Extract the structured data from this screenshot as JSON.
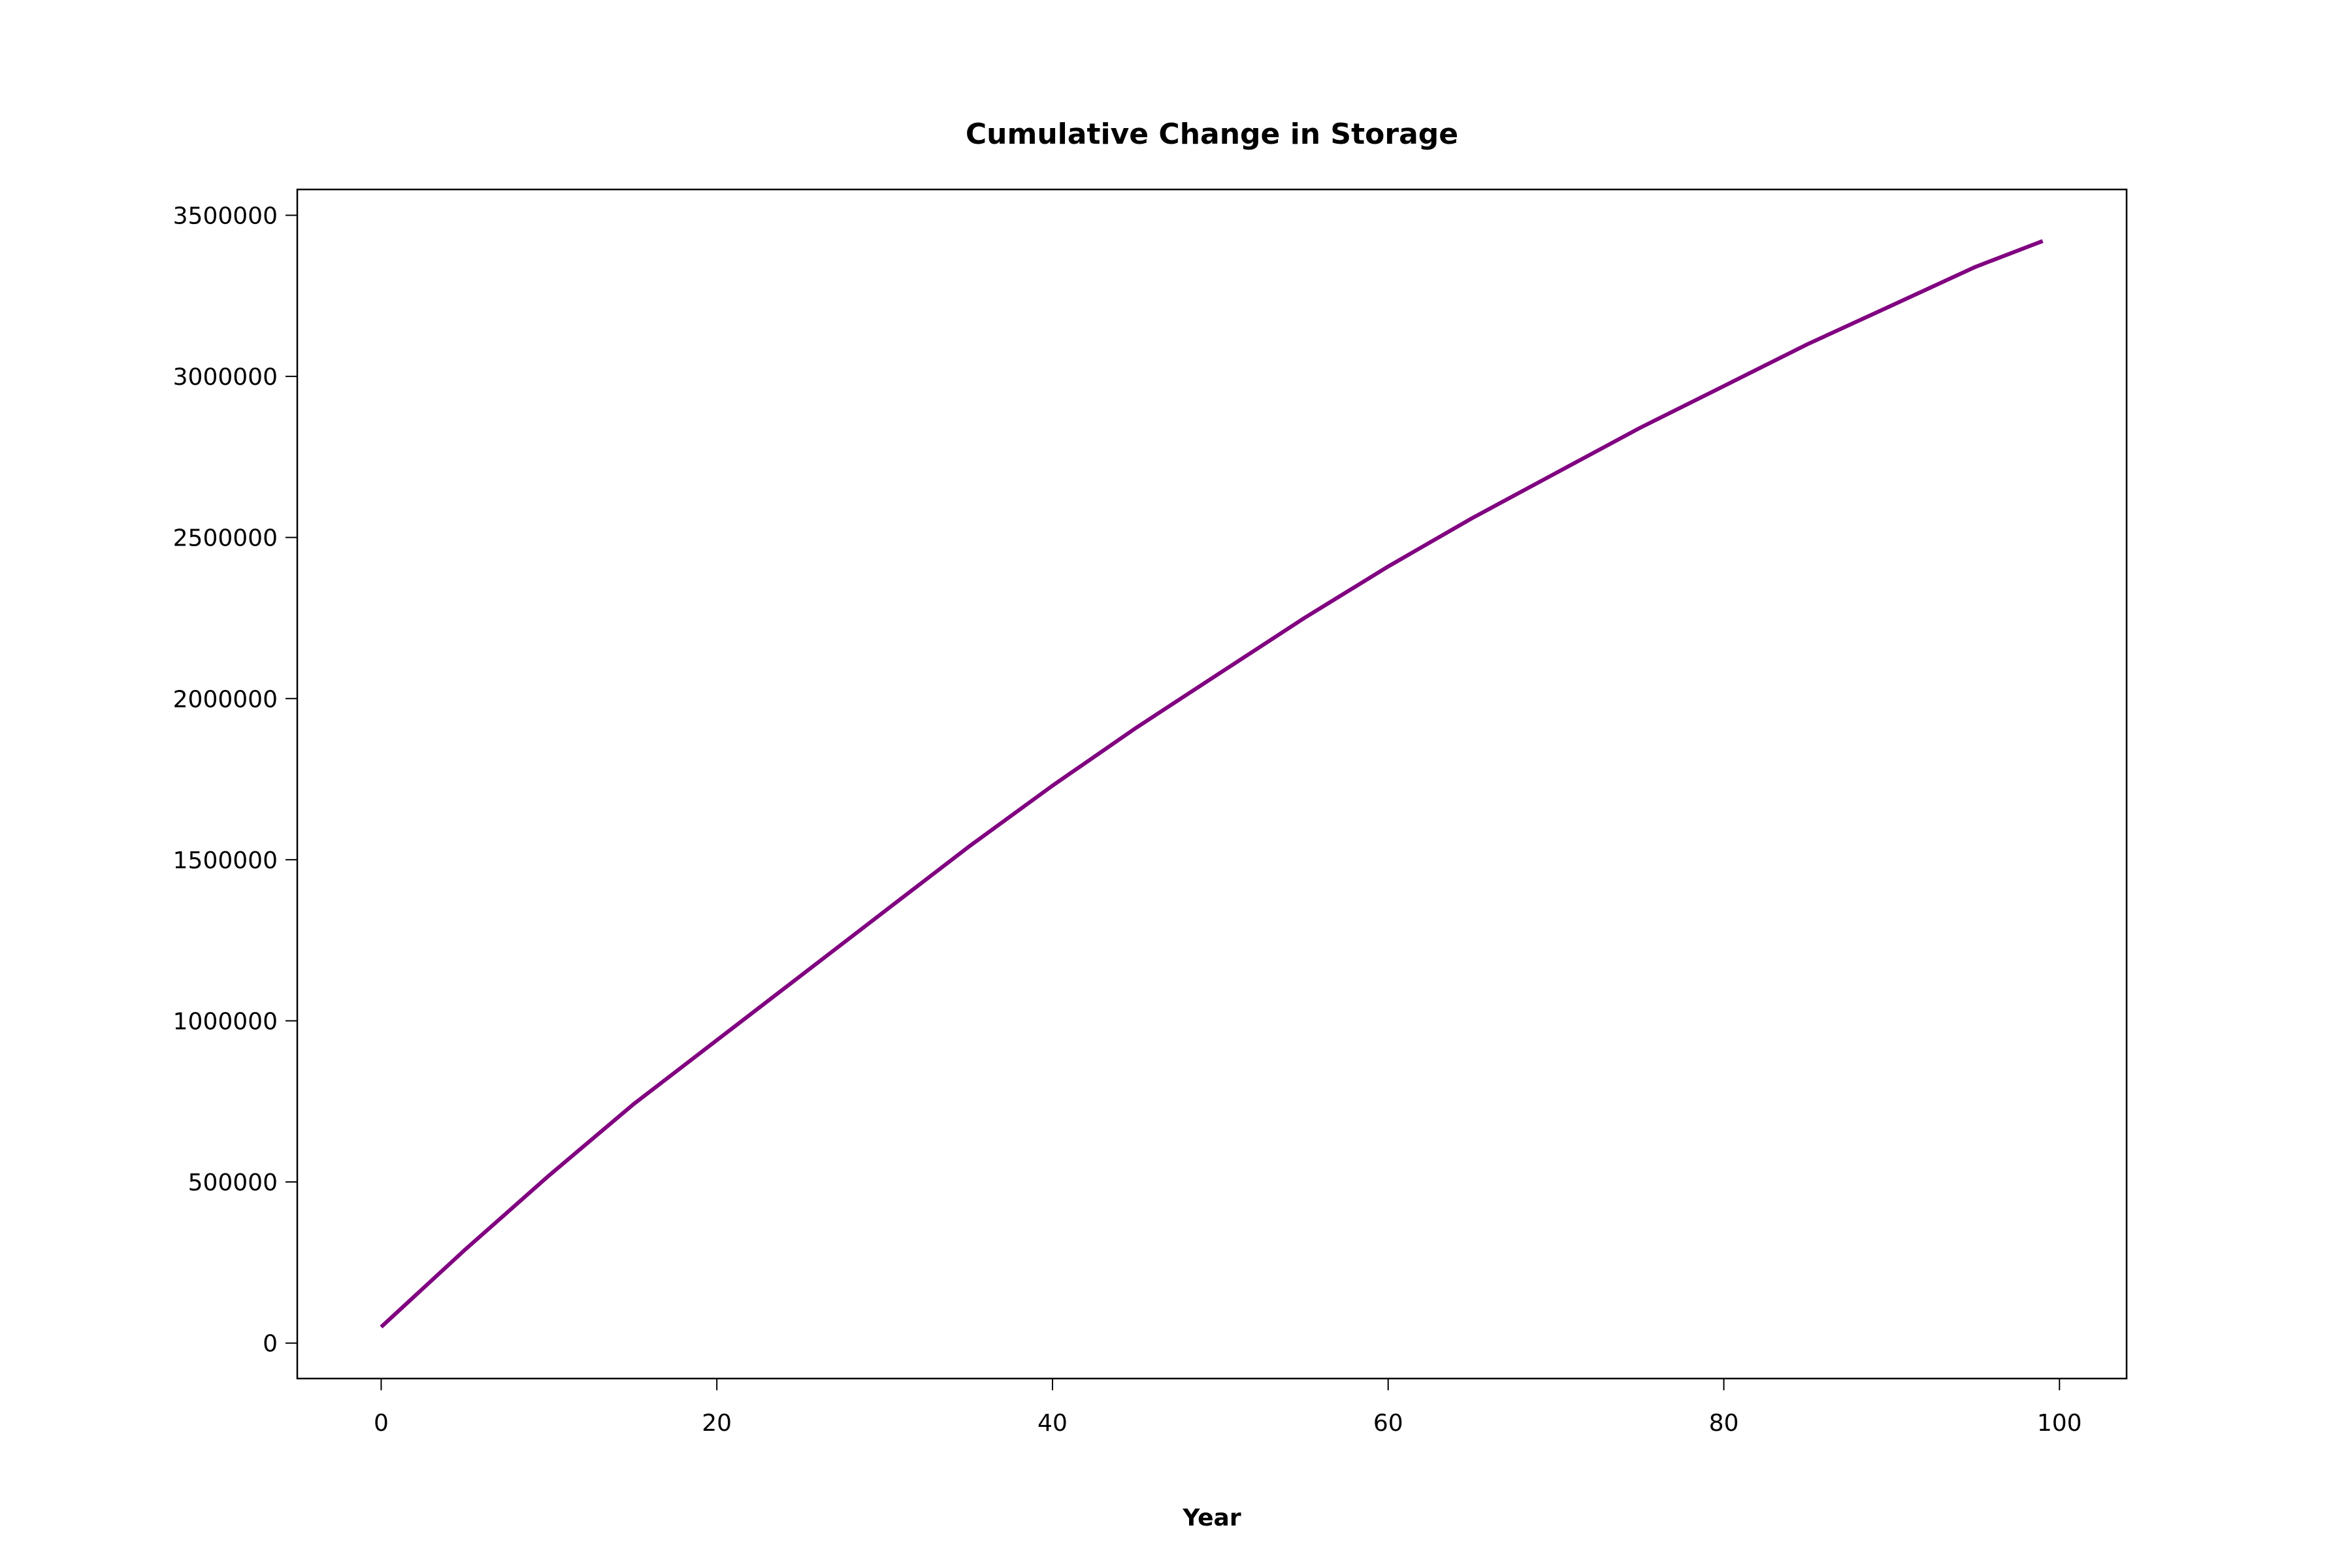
{
  "chart_data": {
    "type": "line",
    "title": "Cumulative Change in Storage",
    "xlabel": "Year",
    "ylabel": "",
    "xlim": [
      -5,
      104
    ],
    "ylim": [
      -110000,
      3580000
    ],
    "xticks": [
      0,
      20,
      40,
      60,
      80,
      100
    ],
    "yticks": [
      0,
      500000,
      1000000,
      1500000,
      2000000,
      2500000,
      3000000,
      3500000
    ],
    "grid": false,
    "series": [
      {
        "color": "#800080",
        "x": [
          0,
          5,
          10,
          15,
          20,
          25,
          30,
          35,
          40,
          45,
          50,
          55,
          60,
          65,
          70,
          75,
          80,
          85,
          90,
          95,
          99
        ],
        "y": [
          50000,
          290000,
          520000,
          740000,
          940000,
          1140000,
          1340000,
          1540000,
          1730000,
          1910000,
          2080000,
          2250000,
          2410000,
          2560000,
          2700000,
          2840000,
          2970000,
          3100000,
          3220000,
          3340000,
          3420000
        ]
      }
    ]
  }
}
